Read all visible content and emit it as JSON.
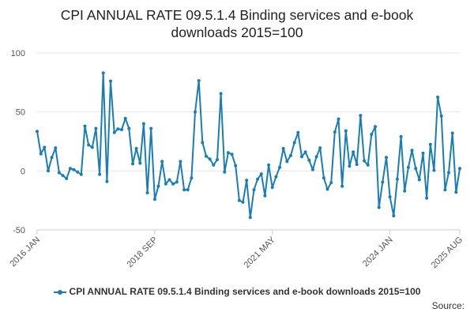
{
  "chart_data": {
    "type": "line",
    "title": "CPI ANNUAL RATE 09.5.1.4 Binding services and e-book downloads 2015=100",
    "title_lines": [
      "CPI ANNUAL RATE 09.5.1.4 Binding services and e-book",
      "downloads 2015=100"
    ],
    "xlabel": "",
    "ylabel": "",
    "ylim": [
      -50,
      100
    ],
    "y_ticks": [
      -50,
      0,
      50,
      100
    ],
    "x_ticks": [
      {
        "label": "2016 JAN",
        "index": 0
      },
      {
        "label": "2018 SEP",
        "index": 32
      },
      {
        "label": "2021 MAY",
        "index": 64
      },
      {
        "label": "2024 JAN",
        "index": 96
      },
      {
        "label": "2025 AUG",
        "index": 115
      }
    ],
    "grid": true,
    "legend_position": "bottom",
    "series": [
      {
        "name": "CPI ANNUAL RATE 09.5.1.4 Binding services and e-book downloads 2015=100",
        "color": "#1a7db5",
        "values": [
          33.5,
          14.5,
          20,
          0,
          11.5,
          19.5,
          -1.5,
          -4,
          -6.5,
          2,
          1,
          -1,
          -3,
          38,
          22,
          20,
          36,
          -3,
          83,
          -9,
          76,
          32.5,
          35.5,
          35,
          44.5,
          36,
          6,
          19,
          6.5,
          40,
          -18.5,
          36,
          -24,
          -13,
          8,
          -11,
          -7.5,
          -11,
          -9.5,
          8,
          -16,
          -16,
          -6,
          50,
          76.5,
          24,
          12.5,
          10,
          5,
          9.5,
          65.5,
          -1,
          15.5,
          14,
          4.5,
          -25,
          -26.5,
          -8,
          -39.5,
          -16,
          -7,
          -2.5,
          -21,
          5,
          -14,
          -5,
          3,
          19,
          8,
          13,
          24,
          32.5,
          12,
          16,
          9,
          1,
          12,
          19.5,
          -6,
          -15.5,
          -10,
          33,
          44,
          -13,
          34,
          4,
          16,
          5.5,
          47,
          8.5,
          5,
          31,
          37.5,
          -31,
          -9.5,
          11.5,
          -22,
          -38,
          -7,
          29,
          -17,
          3,
          17.5,
          2,
          -7.5,
          15,
          -23,
          22.5,
          0.5,
          62.5,
          46.5,
          -16,
          -1.5,
          32,
          -18,
          2
        ]
      }
    ]
  },
  "legend": {
    "label": "CPI ANNUAL RATE 09.5.1.4 Binding services and e-book downloads 2015=100"
  },
  "source": {
    "label": "Source:"
  }
}
